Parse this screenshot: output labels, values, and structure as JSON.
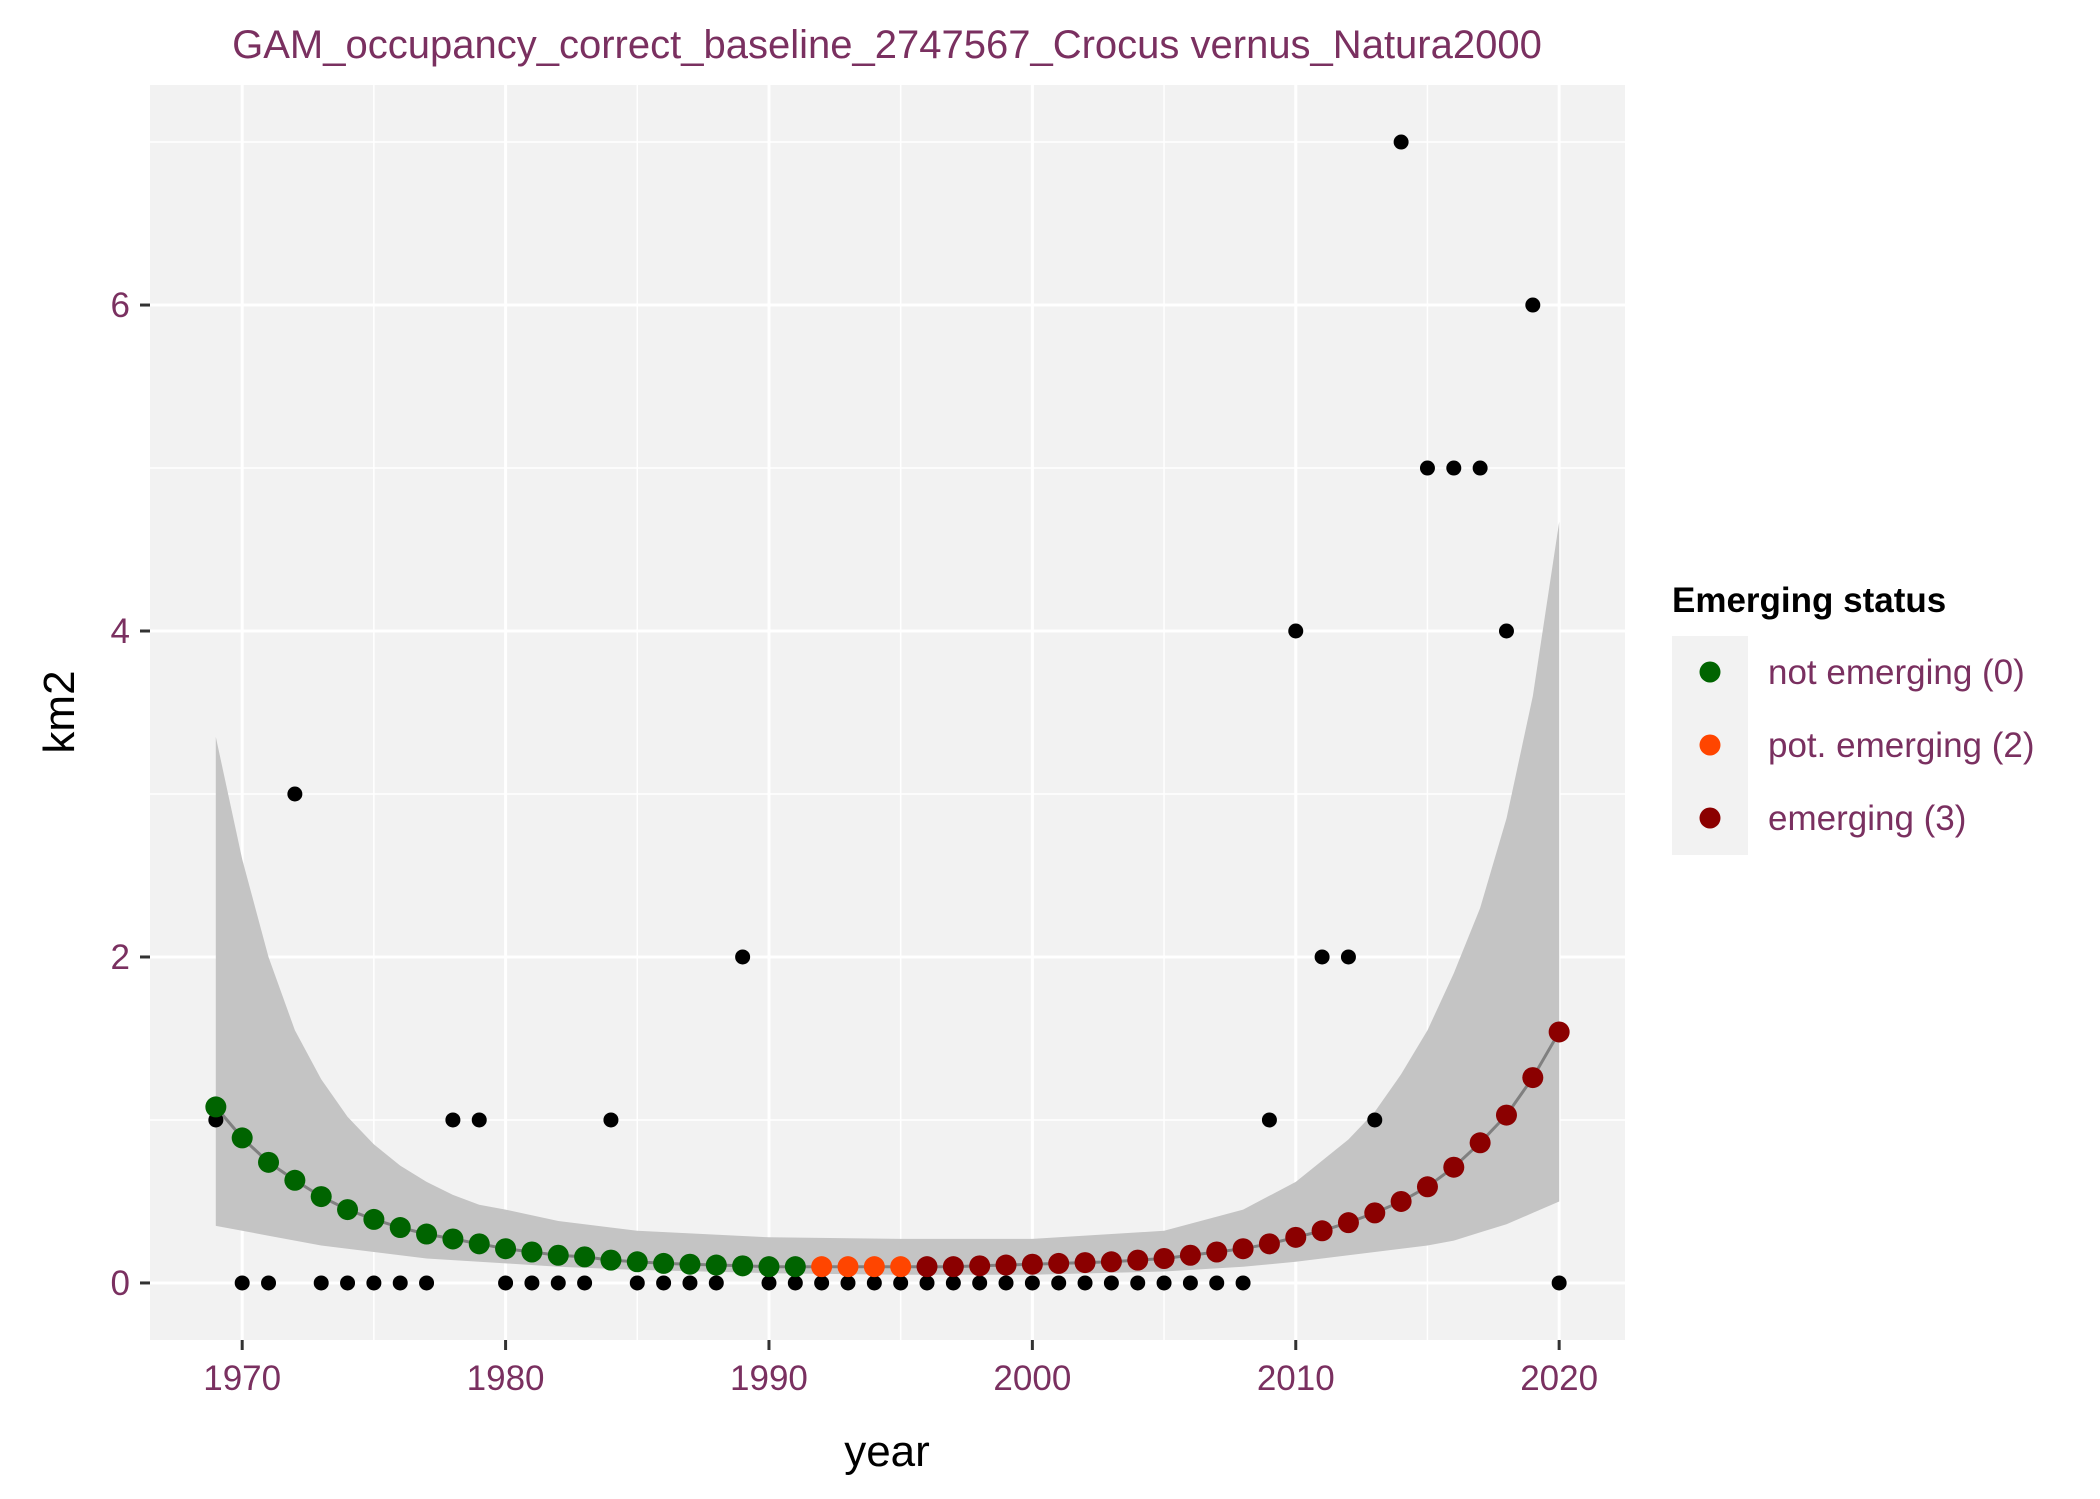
{
  "chart_data": {
    "type": "scatter",
    "title": "GAM_occupancy_correct_baseline_2747567_Crocus vernus_Natura2000",
    "xlabel": "year",
    "ylabel": "km2",
    "xlim": [
      1966.5,
      2022.5
    ],
    "ylim": [
      -0.35,
      7.35
    ],
    "x_ticks": [
      1970,
      1980,
      1990,
      2000,
      2010,
      2020
    ],
    "y_ticks": [
      0,
      2,
      4,
      6
    ],
    "grid": true,
    "legend": {
      "title": "Emerging status",
      "position": "right",
      "entries": [
        {
          "label": "not emerging (0)",
          "color": "#006400"
        },
        {
          "label": "pot. emerging (2)",
          "color": "#ff4500"
        },
        {
          "label": "emerging (3)",
          "color": "#8b0000"
        }
      ]
    },
    "colors": {
      "observed": "#000000",
      "smoother": "#808080",
      "ribbon": "#c4c4c4",
      "panel": "#f2f2f2",
      "grid": "#ffffff"
    },
    "observed": {
      "x": [
        1969,
        1970,
        1971,
        1972,
        1973,
        1974,
        1975,
        1976,
        1977,
        1978,
        1979,
        1980,
        1981,
        1982,
        1983,
        1984,
        1985,
        1986,
        1987,
        1988,
        1989,
        1990,
        1991,
        1992,
        1993,
        1994,
        1995,
        1996,
        1997,
        1998,
        1999,
        2000,
        2001,
        2002,
        2003,
        2004,
        2005,
        2006,
        2007,
        2008,
        2009,
        2010,
        2011,
        2012,
        2013,
        2014,
        2015,
        2016,
        2017,
        2018,
        2019,
        2020
      ],
      "y": [
        1,
        0,
        0,
        3,
        0,
        0,
        0,
        0,
        0,
        1,
        1,
        0,
        0,
        0,
        0,
        1,
        0,
        0,
        0,
        0,
        2,
        0,
        0,
        0,
        0,
        0,
        0,
        0,
        0,
        0,
        0,
        0,
        0,
        0,
        0,
        0,
        0,
        0,
        0,
        0,
        1,
        4,
        2,
        2,
        1,
        7,
        5,
        5,
        5,
        4,
        6,
        0
      ]
    },
    "fitted": {
      "x": [
        1969,
        1970,
        1971,
        1972,
        1973,
        1974,
        1975,
        1976,
        1977,
        1978,
        1979,
        1980,
        1981,
        1982,
        1983,
        1984,
        1985,
        1986,
        1987,
        1988,
        1989,
        1990,
        1991,
        1992,
        1993,
        1994,
        1995,
        1996,
        1997,
        1998,
        1999,
        2000,
        2001,
        2002,
        2003,
        2004,
        2005,
        2006,
        2007,
        2008,
        2009,
        2010,
        2011,
        2012,
        2013,
        2014,
        2015,
        2016,
        2017,
        2018,
        2019,
        2020
      ],
      "y": [
        1.08,
        0.89,
        0.74,
        0.63,
        0.53,
        0.45,
        0.39,
        0.34,
        0.3,
        0.27,
        0.24,
        0.21,
        0.19,
        0.17,
        0.16,
        0.14,
        0.13,
        0.12,
        0.115,
        0.11,
        0.105,
        0.1,
        0.1,
        0.1,
        0.1,
        0.1,
        0.1,
        0.1,
        0.1,
        0.105,
        0.11,
        0.115,
        0.12,
        0.125,
        0.13,
        0.14,
        0.15,
        0.17,
        0.19,
        0.21,
        0.24,
        0.28,
        0.32,
        0.37,
        0.43,
        0.5,
        0.59,
        0.71,
        0.86,
        1.03,
        1.26,
        1.54
      ],
      "status": [
        0,
        0,
        0,
        0,
        0,
        0,
        0,
        0,
        0,
        0,
        0,
        0,
        0,
        0,
        0,
        0,
        0,
        0,
        0,
        0,
        0,
        0,
        0,
        2,
        2,
        2,
        2,
        3,
        3,
        3,
        3,
        3,
        3,
        3,
        3,
        3,
        3,
        3,
        3,
        3,
        3,
        3,
        3,
        3,
        3,
        3,
        3,
        3,
        3,
        3,
        3,
        3
      ],
      "ribbon_x": [
        1969,
        1970,
        1971,
        1972,
        1973,
        1974,
        1975,
        1976,
        1977,
        1978,
        1979,
        1980,
        1982,
        1985,
        1990,
        1995,
        2000,
        2005,
        2008,
        2010,
        2012,
        2013,
        2014,
        2015,
        2016,
        2017,
        2018,
        2019,
        2020
      ],
      "ribbon_lower": [
        0.35,
        0.32,
        0.29,
        0.26,
        0.23,
        0.21,
        0.19,
        0.17,
        0.15,
        0.14,
        0.13,
        0.12,
        0.1,
        0.08,
        0.06,
        0.05,
        0.05,
        0.07,
        0.1,
        0.13,
        0.17,
        0.19,
        0.21,
        0.23,
        0.26,
        0.31,
        0.36,
        0.43,
        0.5
      ],
      "ribbon_upper": [
        3.35,
        2.6,
        2.0,
        1.55,
        1.25,
        1.02,
        0.85,
        0.72,
        0.62,
        0.54,
        0.48,
        0.45,
        0.38,
        0.32,
        0.28,
        0.27,
        0.27,
        0.32,
        0.45,
        0.62,
        0.88,
        1.05,
        1.28,
        1.55,
        1.9,
        2.3,
        2.85,
        3.6,
        4.67
      ]
    }
  }
}
